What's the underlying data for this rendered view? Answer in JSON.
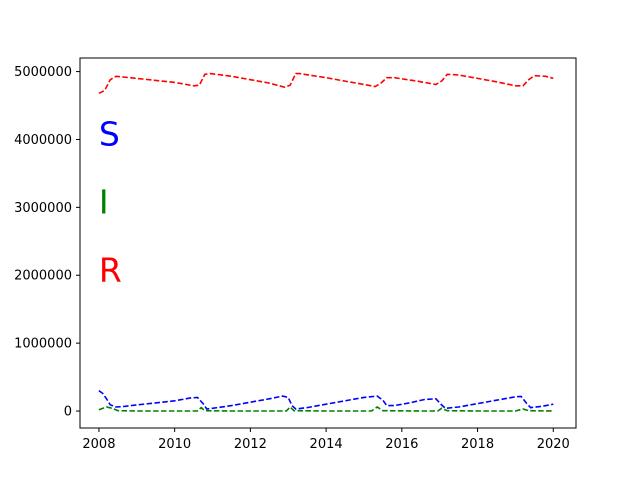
{
  "chart_data": {
    "type": "line",
    "title": "",
    "xlabel": "",
    "ylabel": "",
    "xlim": [
      2007.5,
      2020.6
    ],
    "ylim": [
      -250000,
      5200000
    ],
    "grid": false,
    "xticks": [
      2008,
      2010,
      2012,
      2014,
      2016,
      2018,
      2020
    ],
    "xtick_labels": [
      "2008",
      "2010",
      "2012",
      "2014",
      "2016",
      "2018",
      "2020"
    ],
    "yticks": [
      0,
      1000000,
      2000000,
      3000000,
      4000000,
      5000000
    ],
    "ytick_labels": [
      "0",
      "1000000",
      "2000000",
      "3000000",
      "4000000",
      "5000000"
    ],
    "annotations": [
      {
        "text": "S",
        "x": 2008.0,
        "y": 4050000,
        "color": "#0000ff"
      },
      {
        "text": "I",
        "x": 2008.0,
        "y": 3050000,
        "color": "#008000"
      },
      {
        "text": "R",
        "x": 2008.0,
        "y": 2050000,
        "color": "#ff0000"
      }
    ],
    "series": [
      {
        "color": "#0000ff",
        "linestyle": "dashed",
        "points": [
          [
            2008.0,
            300000
          ],
          [
            2008.1,
            260000
          ],
          [
            2008.2,
            180000
          ],
          [
            2008.3,
            90000
          ],
          [
            2008.45,
            60000
          ],
          [
            2008.7,
            70000
          ],
          [
            2009.0,
            90000
          ],
          [
            2009.5,
            120000
          ],
          [
            2010.0,
            150000
          ],
          [
            2010.4,
            190000
          ],
          [
            2010.6,
            200000
          ],
          [
            2010.75,
            110000
          ],
          [
            2010.85,
            30000
          ],
          [
            2011.0,
            40000
          ],
          [
            2011.5,
            80000
          ],
          [
            2012.0,
            130000
          ],
          [
            2012.5,
            180000
          ],
          [
            2012.85,
            220000
          ],
          [
            2013.0,
            200000
          ],
          [
            2013.1,
            80000
          ],
          [
            2013.2,
            30000
          ],
          [
            2013.5,
            50000
          ],
          [
            2014.0,
            100000
          ],
          [
            2014.5,
            150000
          ],
          [
            2015.0,
            200000
          ],
          [
            2015.35,
            220000
          ],
          [
            2015.5,
            160000
          ],
          [
            2015.6,
            80000
          ],
          [
            2015.8,
            80000
          ],
          [
            2016.2,
            120000
          ],
          [
            2016.6,
            170000
          ],
          [
            2016.9,
            180000
          ],
          [
            2017.05,
            90000
          ],
          [
            2017.15,
            40000
          ],
          [
            2017.5,
            60000
          ],
          [
            2018.0,
            110000
          ],
          [
            2018.5,
            160000
          ],
          [
            2019.0,
            210000
          ],
          [
            2019.15,
            215000
          ],
          [
            2019.3,
            110000
          ],
          [
            2019.4,
            50000
          ],
          [
            2019.7,
            70000
          ],
          [
            2020.0,
            100000
          ]
        ]
      },
      {
        "color": "#008000",
        "linestyle": "dashed",
        "points": [
          [
            2008.0,
            20000
          ],
          [
            2008.2,
            60000
          ],
          [
            2008.35,
            40000
          ],
          [
            2008.5,
            5000
          ],
          [
            2009.0,
            0
          ],
          [
            2010.0,
            0
          ],
          [
            2010.6,
            0
          ],
          [
            2010.7,
            50000
          ],
          [
            2010.8,
            5000
          ],
          [
            2011.5,
            0
          ],
          [
            2012.5,
            0
          ],
          [
            2012.95,
            0
          ],
          [
            2013.05,
            60000
          ],
          [
            2013.15,
            5000
          ],
          [
            2014.0,
            0
          ],
          [
            2015.2,
            0
          ],
          [
            2015.35,
            60000
          ],
          [
            2015.5,
            5000
          ],
          [
            2016.5,
            0
          ],
          [
            2016.95,
            0
          ],
          [
            2017.05,
            40000
          ],
          [
            2017.2,
            5000
          ],
          [
            2018.0,
            0
          ],
          [
            2019.0,
            0
          ],
          [
            2019.2,
            30000
          ],
          [
            2019.35,
            5000
          ],
          [
            2020.0,
            0
          ]
        ]
      },
      {
        "color": "#ff0000",
        "linestyle": "dashed",
        "points": [
          [
            2008.0,
            4680000
          ],
          [
            2008.15,
            4720000
          ],
          [
            2008.3,
            4880000
          ],
          [
            2008.45,
            4930000
          ],
          [
            2009.0,
            4900000
          ],
          [
            2009.5,
            4870000
          ],
          [
            2010.0,
            4840000
          ],
          [
            2010.5,
            4790000
          ],
          [
            2010.65,
            4800000
          ],
          [
            2010.8,
            4960000
          ],
          [
            2010.95,
            4970000
          ],
          [
            2011.5,
            4930000
          ],
          [
            2012.0,
            4880000
          ],
          [
            2012.5,
            4830000
          ],
          [
            2012.9,
            4770000
          ],
          [
            2013.05,
            4800000
          ],
          [
            2013.2,
            4970000
          ],
          [
            2013.3,
            4970000
          ],
          [
            2014.0,
            4910000
          ],
          [
            2014.5,
            4860000
          ],
          [
            2015.0,
            4810000
          ],
          [
            2015.3,
            4780000
          ],
          [
            2015.45,
            4830000
          ],
          [
            2015.6,
            4910000
          ],
          [
            2015.8,
            4910000
          ],
          [
            2016.4,
            4860000
          ],
          [
            2016.9,
            4810000
          ],
          [
            2017.05,
            4860000
          ],
          [
            2017.2,
            4960000
          ],
          [
            2017.5,
            4950000
          ],
          [
            2018.0,
            4900000
          ],
          [
            2018.5,
            4850000
          ],
          [
            2019.0,
            4790000
          ],
          [
            2019.2,
            4790000
          ],
          [
            2019.35,
            4880000
          ],
          [
            2019.5,
            4940000
          ],
          [
            2019.8,
            4930000
          ],
          [
            2020.0,
            4900000
          ]
        ]
      }
    ]
  }
}
